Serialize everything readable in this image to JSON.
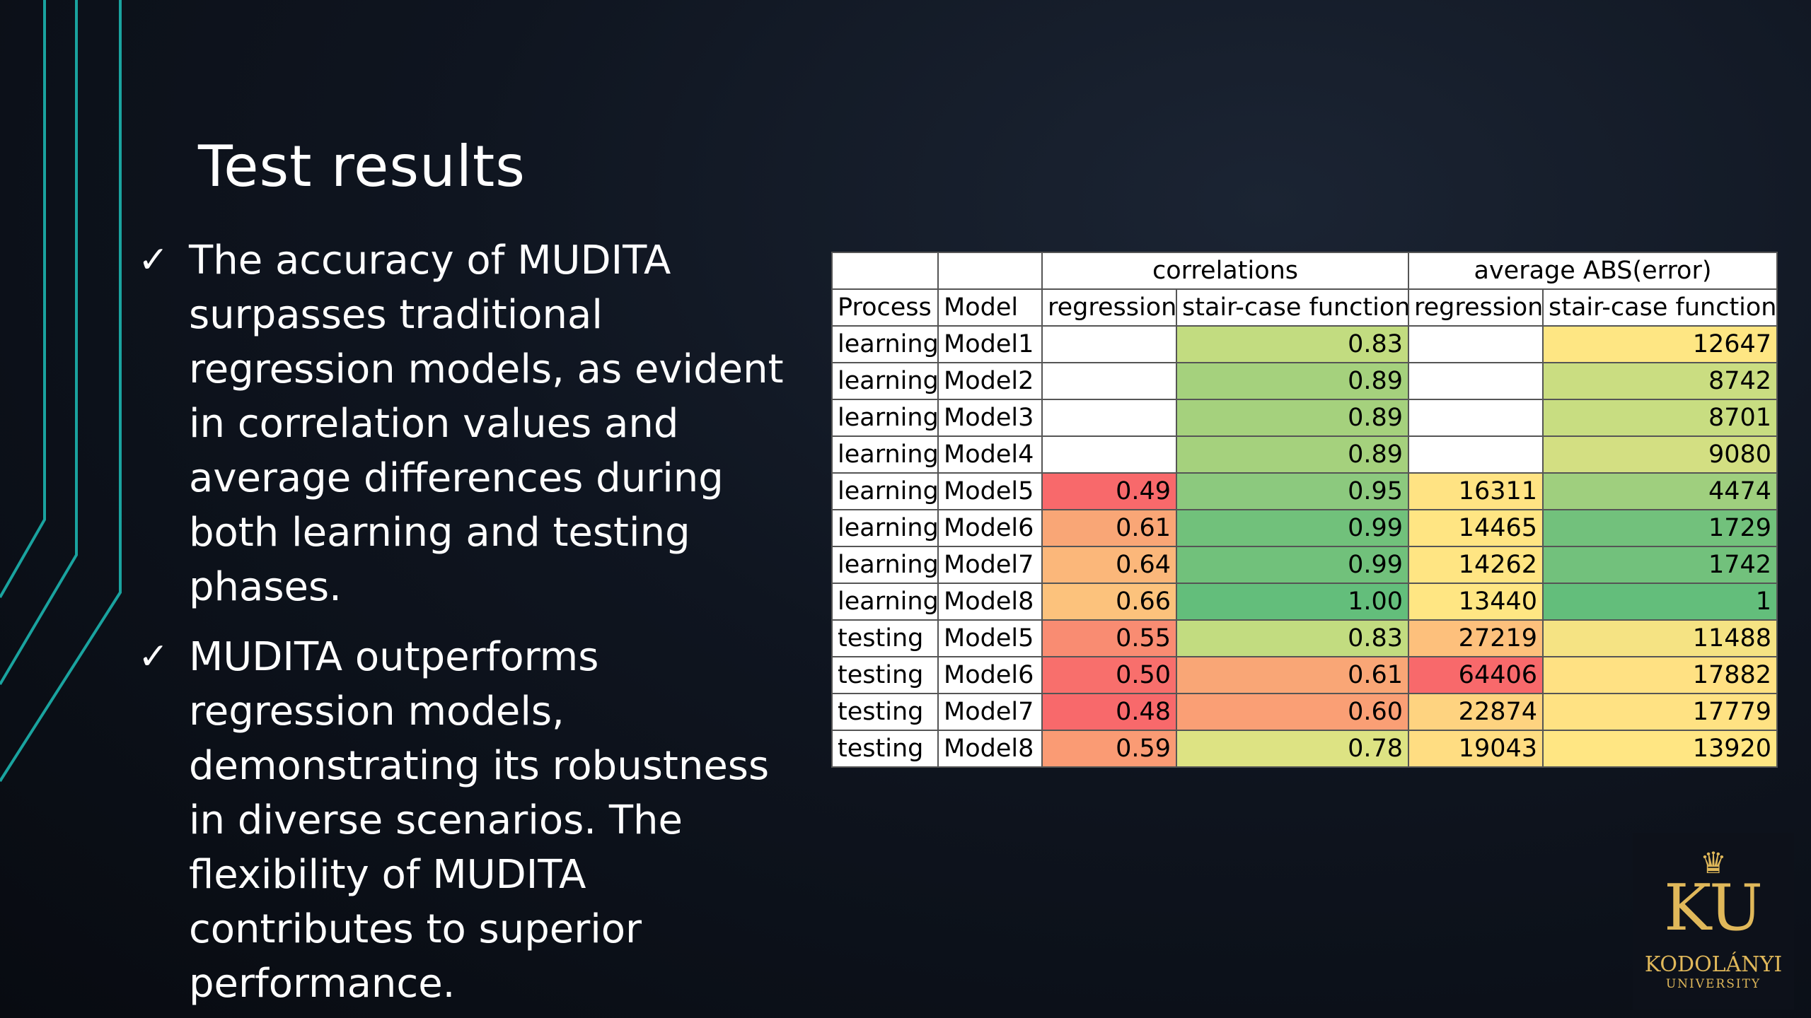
{
  "slide": {
    "title": "Test results",
    "bullets": [
      "The accuracy of MUDITA surpasses traditional regression models, as evident in correlation values and average differences during both learning and testing phases.",
      "MUDITA outperforms regression models, demonstrating its robustness in diverse scenarios. The flexibility of MUDITA contributes to superior performance."
    ],
    "check_icon": "checkmark-icon",
    "logo": {
      "name": "KODOLÁNYI",
      "sub": "UNIVERSITY",
      "monogram": "KU"
    }
  },
  "table": {
    "group_headers": [
      "",
      "",
      "correlations",
      "average ABS(error)"
    ],
    "columns": [
      "Process",
      "Model",
      "regression",
      "stair-case function",
      "regression",
      "stair-case function"
    ],
    "rows": [
      {
        "process": "learning",
        "model": "Model1",
        "corr_reg": "",
        "corr_stair": "0.83",
        "err_reg": "",
        "err_stair": "12647"
      },
      {
        "process": "learning",
        "model": "Model2",
        "corr_reg": "",
        "corr_stair": "0.89",
        "err_reg": "",
        "err_stair": "8742"
      },
      {
        "process": "learning",
        "model": "Model3",
        "corr_reg": "",
        "corr_stair": "0.89",
        "err_reg": "",
        "err_stair": "8701"
      },
      {
        "process": "learning",
        "model": "Model4",
        "corr_reg": "",
        "corr_stair": "0.89",
        "err_reg": "",
        "err_stair": "9080"
      },
      {
        "process": "learning",
        "model": "Model5",
        "corr_reg": "0.49",
        "corr_stair": "0.95",
        "err_reg": "16311",
        "err_stair": "4474"
      },
      {
        "process": "learning",
        "model": "Model6",
        "corr_reg": "0.61",
        "corr_stair": "0.99",
        "err_reg": "14465",
        "err_stair": "1729"
      },
      {
        "process": "learning",
        "model": "Model7",
        "corr_reg": "0.64",
        "corr_stair": "0.99",
        "err_reg": "14262",
        "err_stair": "1742"
      },
      {
        "process": "learning",
        "model": "Model8",
        "corr_reg": "0.66",
        "corr_stair": "1.00",
        "err_reg": "13440",
        "err_stair": "1"
      },
      {
        "process": "testing",
        "model": "Model5",
        "corr_reg": "0.55",
        "corr_stair": "0.83",
        "err_reg": "27219",
        "err_stair": "11488"
      },
      {
        "process": "testing",
        "model": "Model6",
        "corr_reg": "0.50",
        "corr_stair": "0.61",
        "err_reg": "64406",
        "err_stair": "17882"
      },
      {
        "process": "testing",
        "model": "Model7",
        "corr_reg": "0.48",
        "corr_stair": "0.60",
        "err_reg": "22874",
        "err_stair": "17779"
      },
      {
        "process": "testing",
        "model": "Model8",
        "corr_reg": "0.59",
        "corr_stair": "0.78",
        "err_reg": "19043",
        "err_stair": "13920"
      }
    ],
    "cell_colors": {
      "0.83": "#c2dc80",
      "0.89": "#a5d17d",
      "0.95": "#8cc97e",
      "0.99": "#71c17b",
      "1.00": "#63be7b",
      "0.49": "#f8696b",
      "0.61": "#f9a676",
      "0.64": "#fbb77a",
      "0.66": "#fcc27c",
      "0.55": "#f98c72",
      "0.50": "#f86f6c",
      "0.48": "#f8696b",
      "0.59": "#fa9b74",
      "0.60": "#fa9f75",
      "0.78": "#dde383",
      "12647": "#fee683",
      "8742": "#cadd81",
      "8701": "#c8dd81",
      "9080": "#d3df82",
      "4474": "#9fcf7e",
      "1729": "#72c17c",
      "1742": "#72c17c",
      "1": "#63be7b",
      "16311": "#ffe383",
      "14465": "#ffe583",
      "14262": "#ffe583",
      "13440": "#ffe683",
      "27219": "#fdc07c",
      "64406": "#f8696b",
      "22874": "#fed380",
      "19043": "#ffdd82",
      "11488": "#f5e383",
      "17882": "#ffe183",
      "17779": "#ffe283",
      "13920": "#ffe683"
    }
  }
}
